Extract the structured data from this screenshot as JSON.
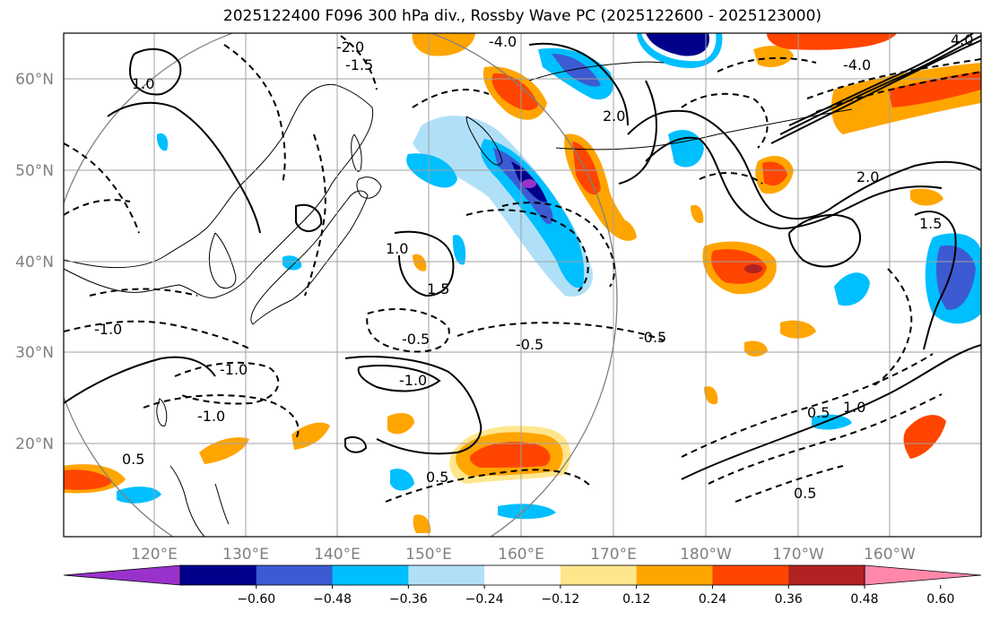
{
  "title": "2025122400 F096 300 hPa div., Rossby Wave PC (2025122600 - 2025123000)",
  "lat_labels": [
    "60°N",
    "50°N",
    "40°N",
    "30°N",
    "20°N"
  ],
  "lon_labels": [
    "120°E",
    "130°E",
    "140°E",
    "150°E",
    "160°E",
    "170°E",
    "180°W",
    "170°W",
    "160°W"
  ],
  "colorbar": {
    "ticks": [
      "−0.60",
      "−0.48",
      "−0.36",
      "−0.24",
      "−0.12",
      "0.12",
      "0.24",
      "0.36",
      "0.48",
      "0.60"
    ],
    "colors": [
      "#9932cc",
      "#00008b",
      "#3c5ad2",
      "#00bfff",
      "#b0e0f8",
      "#ffffff",
      "#ffe68c",
      "#ffa500",
      "#ff4500",
      "#b22222",
      "#ff88aa"
    ]
  },
  "contour_labels": [
    "2.0",
    "-1.5",
    "-2.0",
    "-1.0",
    "-0.5",
    "0.5",
    "1.0",
    "1.5",
    "-4.0",
    "4.0"
  ]
}
